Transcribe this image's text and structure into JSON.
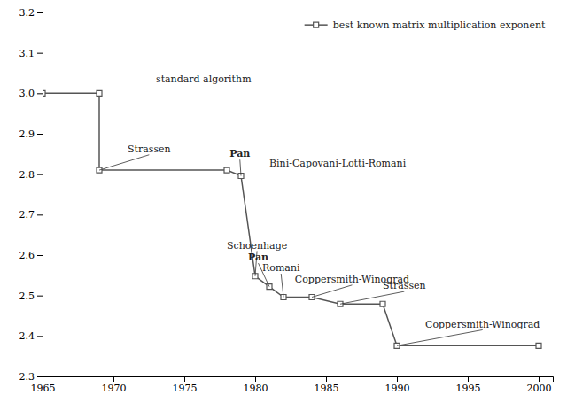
{
  "chart_data": {
    "type": "line",
    "x": [
      1965,
      1969,
      1969,
      1978,
      1979,
      1980,
      1981,
      1982,
      1984,
      1986,
      1989,
      1990,
      2000
    ],
    "series": [
      {
        "name": "best known matrix multiplication exponent",
        "color": "#555555",
        "marker": "square",
        "values": [
          3.0,
          3.0,
          2.81,
          2.81,
          2.796,
          2.548,
          2.522,
          2.496,
          2.496,
          2.479,
          2.479,
          2.376,
          2.376
        ]
      }
    ],
    "xlim": [
      1965,
      2001
    ],
    "ylim": [
      2.3,
      3.2
    ],
    "xticks": [
      1965,
      1970,
      1975,
      1980,
      1985,
      1990,
      1995,
      2000
    ],
    "yticks": [
      2.3,
      2.4,
      2.5,
      2.6,
      2.7,
      2.8,
      2.9,
      {
        "value": 3.0,
        "label": "3.0"
      },
      3.1,
      3.2
    ],
    "grid": false,
    "legend": "upper-right",
    "annotations": [
      {
        "text": "standard algorithm",
        "x": 1973,
        "y": 3.02,
        "bold": false
      },
      {
        "text": "Strassen",
        "x": 1971,
        "y": 2.848,
        "bold": false,
        "arrow_x": 1969,
        "arrow_y": 2.81
      },
      {
        "text": "Pan",
        "x": 1978.2,
        "y": 2.836,
        "bold": true,
        "arrow_x": 1979,
        "arrow_y": 2.796
      },
      {
        "text": "Bini-Capovani-Lotti-Romani",
        "x": 1981.0,
        "y": 2.812,
        "bold": false
      },
      {
        "text": "Schoenhage",
        "x": 1978.0,
        "y": 2.61,
        "bold": false,
        "arrow_x": 1980,
        "arrow_y": 2.548
      },
      {
        "text": "Pan",
        "x": 1979.5,
        "y": 2.58,
        "bold": true,
        "arrow_x": 1981,
        "arrow_y": 2.522
      },
      {
        "text": "Romani",
        "x": 1980.5,
        "y": 2.554,
        "bold": false,
        "arrow_x": 1982,
        "arrow_y": 2.496
      },
      {
        "text": "Coppersmith-Winograd",
        "x": 1982.8,
        "y": 2.526,
        "bold": false,
        "arrow_x": 1984,
        "arrow_y": 2.496
      },
      {
        "text": "Strassen",
        "x": 1989.0,
        "y": 2.51,
        "bold": false,
        "arrow_x": 1986,
        "arrow_y": 2.479
      },
      {
        "text": "Coppersmith-Winograd",
        "x": 1992.0,
        "y": 2.415,
        "bold": false,
        "arrow_x": 1990,
        "arrow_y": 2.376
      }
    ]
  }
}
